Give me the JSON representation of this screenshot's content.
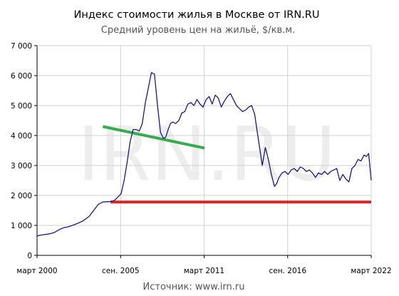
{
  "chart_data": {
    "type": "line",
    "title": "Индекс стоимости жилья в Москве от IRN.RU",
    "subtitle": "Средний уровень цен на жильё, $/кв.м.",
    "source": "Источник: www.irn.ru",
    "watermark": "IRN.RU",
    "xlabel": "",
    "ylabel": "",
    "ylim": [
      0,
      7000
    ],
    "yticks": [
      0,
      1000,
      2000,
      3000,
      4000,
      5000,
      6000,
      7000
    ],
    "ytick_labels": [
      "0",
      "1 000",
      "2 000",
      "3 000",
      "4 000",
      "5 000",
      "6 000",
      "7 000"
    ],
    "xlim": [
      2000.17,
      2022.17
    ],
    "xticks": [
      {
        "x": 2000.17,
        "label": "март 2000"
      },
      {
        "x": 2005.67,
        "label": "сен. 2005"
      },
      {
        "x": 2011.17,
        "label": "март 2011"
      },
      {
        "x": 2016.67,
        "label": "сен. 2016"
      },
      {
        "x": 2022.17,
        "label": "март 2022"
      }
    ],
    "grid": true,
    "series": [
      {
        "color": "#1a1a80",
        "x": [
          2000.17,
          2000.5,
          2001.0,
          2001.3,
          2001.6,
          2001.9,
          2002.2,
          2002.5,
          2002.9,
          2003.2,
          2003.6,
          2003.9,
          2004.2,
          2004.5,
          2004.8,
          2005.1,
          2005.3,
          2005.5,
          2005.7,
          2005.9,
          2006.1,
          2006.3,
          2006.5,
          2006.7,
          2006.9,
          2007.1,
          2007.3,
          2007.5,
          2007.7,
          2007.9,
          2008.1,
          2008.3,
          2008.5,
          2008.65,
          2008.8,
          2008.95,
          2009.1,
          2009.3,
          2009.5,
          2009.7,
          2009.9,
          2010.1,
          2010.3,
          2010.5,
          2010.7,
          2010.9,
          2011.1,
          2011.3,
          2011.5,
          2011.7,
          2011.9,
          2012.1,
          2012.3,
          2012.5,
          2012.7,
          2012.9,
          2013.1,
          2013.3,
          2013.5,
          2013.7,
          2013.9,
          2014.1,
          2014.3,
          2014.5,
          2014.7,
          2014.85,
          2015.0,
          2015.2,
          2015.4,
          2015.6,
          2015.8,
          2015.95,
          2016.1,
          2016.3,
          2016.5,
          2016.7,
          2016.9,
          2017.1,
          2017.3,
          2017.5,
          2017.7,
          2017.9,
          2018.1,
          2018.3,
          2018.5,
          2018.7,
          2018.9,
          2019.1,
          2019.3,
          2019.5,
          2019.7,
          2019.9,
          2020.1,
          2020.3,
          2020.5,
          2020.7,
          2020.9,
          2021.1,
          2021.3,
          2021.5,
          2021.7,
          2021.85,
          2022.0,
          2022.17
        ],
        "y": [
          650,
          680,
          720,
          760,
          850,
          920,
          950,
          1000,
          1080,
          1150,
          1300,
          1500,
          1700,
          1780,
          1790,
          1800,
          1850,
          1950,
          2050,
          2500,
          3100,
          3800,
          4200,
          4200,
          4150,
          4400,
          5100,
          5600,
          6100,
          6050,
          5000,
          4100,
          3900,
          3950,
          4200,
          4400,
          4450,
          4400,
          4500,
          4750,
          4800,
          5050,
          5100,
          5000,
          5200,
          5050,
          4950,
          5200,
          5300,
          5050,
          5350,
          5250,
          4950,
          5150,
          5300,
          5400,
          5200,
          5000,
          4900,
          4800,
          4850,
          4950,
          5000,
          4700,
          4000,
          3500,
          3000,
          3600,
          3200,
          2700,
          2300,
          2400,
          2600,
          2750,
          2800,
          2700,
          2850,
          2900,
          2800,
          2950,
          2900,
          2800,
          2850,
          2750,
          2600,
          2750,
          2700,
          2800,
          2700,
          2800,
          2850,
          2900,
          2500,
          2700,
          2550,
          2450,
          2900,
          3000,
          3200,
          3150,
          3350,
          3300,
          3400,
          2500
        ]
      }
    ],
    "reference_lines": [
      {
        "color": "#3aaa50",
        "x": [
          2004.5,
          2011.2
        ],
        "y": [
          4300,
          3580
        ]
      },
      {
        "color": "#dd2222",
        "x": [
          2005.0,
          2022.17
        ],
        "y": [
          1780,
          1780
        ]
      }
    ]
  }
}
